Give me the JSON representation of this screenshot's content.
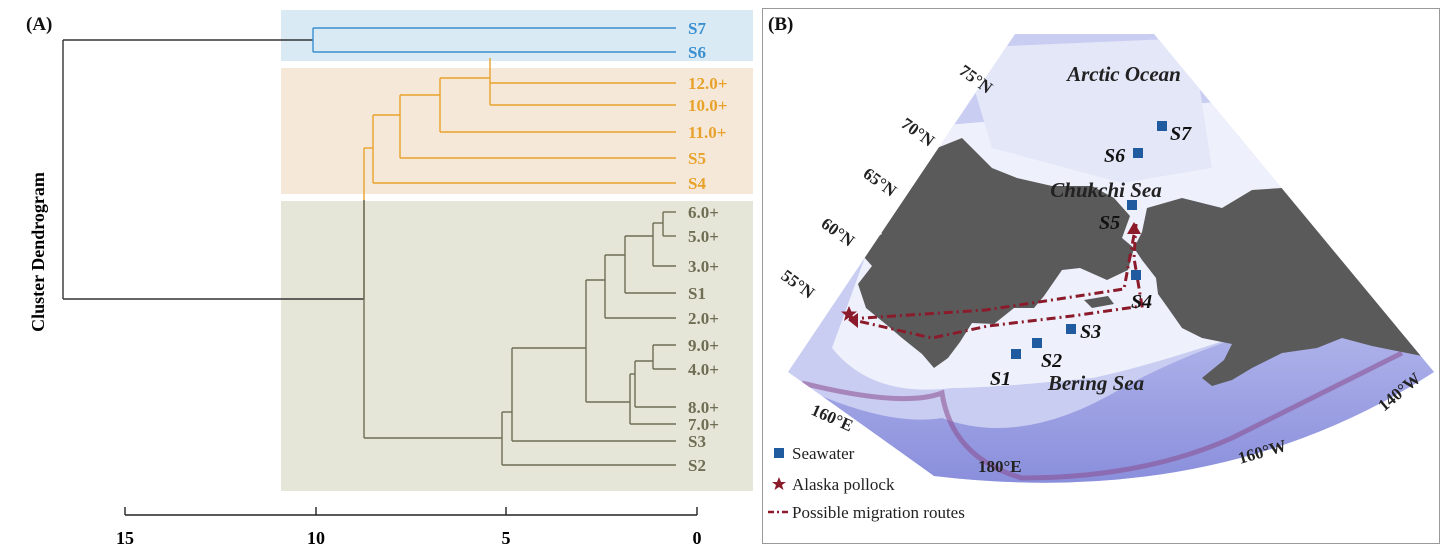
{
  "panel_a": {
    "label": "(A)",
    "y_axis_label": "Cluster Dendrogram",
    "axis_ticks": [
      "15",
      "10",
      "5",
      "0"
    ],
    "cluster_colors": {
      "blue": "#3a8fd0",
      "orange": "#e8a22c",
      "olive": "#6e6e55"
    },
    "cluster_backgrounds": {
      "blue": "#d9eaf4",
      "orange": "#f6e8d8",
      "olive": "#e6e6d8"
    },
    "leaves": [
      {
        "label": "S7",
        "cluster": "blue"
      },
      {
        "label": "S6",
        "cluster": "blue"
      },
      {
        "label": "12.0+",
        "cluster": "orange"
      },
      {
        "label": "10.0+",
        "cluster": "orange"
      },
      {
        "label": "11.0+",
        "cluster": "orange"
      },
      {
        "label": "S5",
        "cluster": "orange"
      },
      {
        "label": "S4",
        "cluster": "orange"
      },
      {
        "label": "6.0+",
        "cluster": "olive"
      },
      {
        "label": "5.0+",
        "cluster": "olive"
      },
      {
        "label": "3.0+",
        "cluster": "olive"
      },
      {
        "label": "S1",
        "cluster": "olive"
      },
      {
        "label": "2.0+",
        "cluster": "olive"
      },
      {
        "label": "9.0+",
        "cluster": "olive"
      },
      {
        "label": "4.0+",
        "cluster": "olive"
      },
      {
        "label": "8.0+",
        "cluster": "olive"
      },
      {
        "label": "7.0+",
        "cluster": "olive"
      },
      {
        "label": "S3",
        "cluster": "olive"
      },
      {
        "label": "S2",
        "cluster": "olive"
      }
    ]
  },
  "panel_b": {
    "label": "(B)",
    "region_labels": {
      "arctic": "Arctic Ocean",
      "chukchi": "Chukchi Sea",
      "bering": "Bering Sea"
    },
    "latitude_labels": [
      "75°N",
      "70°N",
      "65°N",
      "60°N",
      "55°N"
    ],
    "longitude_labels": [
      "160°E",
      "180°E",
      "160°W",
      "140°W"
    ],
    "stations": [
      "S1",
      "S2",
      "S3",
      "S4",
      "S5",
      "S6",
      "S7"
    ],
    "legend": {
      "seawater": "Seawater",
      "pollock": "Alaska pollock",
      "routes": "Possible migration routes"
    },
    "colors": {
      "station": "#1f5b9e",
      "pollock": "#8b1a2a",
      "route": "#8b1a2a",
      "land": "#5a5a5a",
      "sea_shelf": "#eef1fb",
      "sea_deep": "#8f93e0"
    }
  }
}
